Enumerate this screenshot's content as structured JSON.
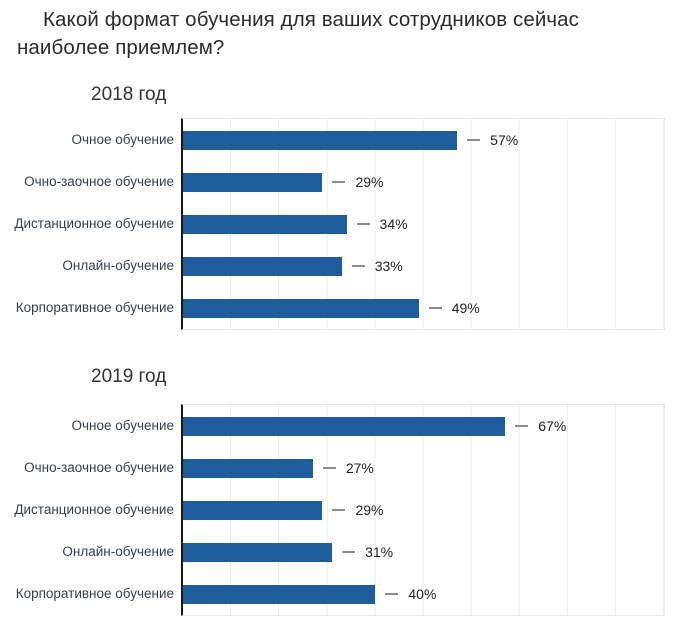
{
  "page": {
    "title_lines": [
      "Какой формат обучения для ваших сотрудников сейчас",
      "наиболее приемлем?"
    ]
  },
  "colors": {
    "bar": "#1f5c9b",
    "axis": "#1a1a1a",
    "grid": "#ececec",
    "frame": "#e9e9e9",
    "label": "#343f4b",
    "value": "#222222",
    "dash": "#8c8c8c",
    "heading": "#333333",
    "title": "#2b2b2b"
  },
  "chart_data": [
    {
      "type": "bar",
      "orientation": "horizontal",
      "title": "2018 год",
      "categories": [
        "Очное обучение",
        "Очно-заочное обучение",
        "Дистанционное обучение",
        "Онлайн-обучение",
        "Корпоративное обучение"
      ],
      "values": [
        57,
        29,
        34,
        33,
        49
      ],
      "value_labels": [
        "57%",
        "29%",
        "34%",
        "33%",
        "49%"
      ],
      "xlim": [
        0,
        100
      ],
      "grid_step": 10,
      "grid": true,
      "legend": false
    },
    {
      "type": "bar",
      "orientation": "horizontal",
      "title": "2019 год",
      "categories": [
        "Очное обучение",
        "Очно-заочное обучение",
        "Дистанционное обучение",
        "Онлайн-обучение",
        "Корпоративное обучение"
      ],
      "values": [
        67,
        27,
        29,
        31,
        40
      ],
      "value_labels": [
        "67%",
        "27%",
        "29%",
        "31%",
        "40%"
      ],
      "xlim": [
        0,
        100
      ],
      "grid_step": 10,
      "grid": true,
      "legend": false
    }
  ]
}
